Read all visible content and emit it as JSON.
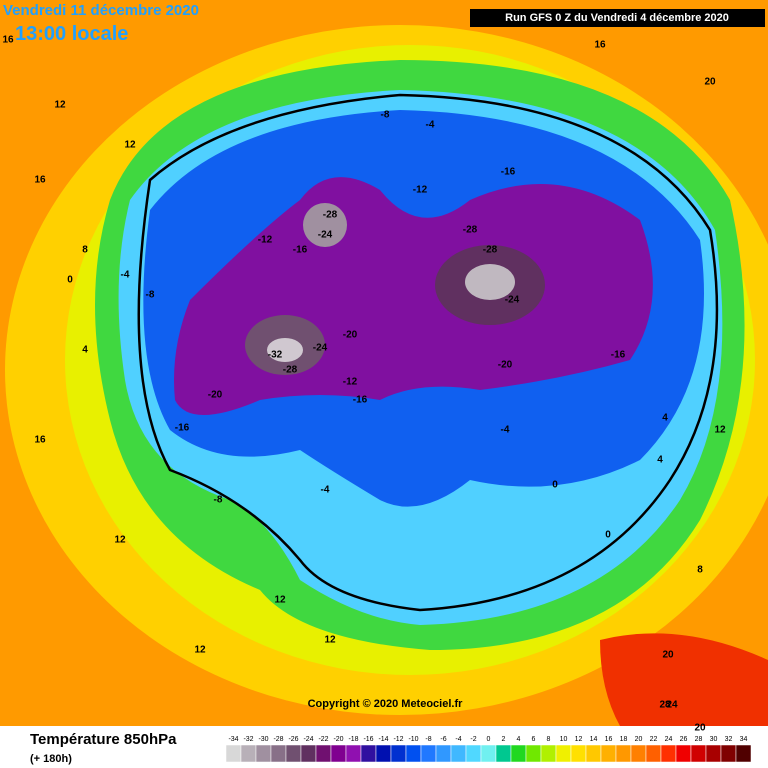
{
  "header": {
    "date": "Vendredi 11 décembre 2020",
    "time": "13:00 locale",
    "run": "Run GFS 0 Z du Vendredi 4 décembre 2020"
  },
  "copyright": "Copyright © 2020 Meteociel.fr",
  "footer": {
    "title": "Température 850hPa",
    "lead": "(+ 180h)"
  },
  "colorbar": {
    "ticks": [
      -34,
      -32,
      -30,
      -28,
      -26,
      -24,
      -22,
      -20,
      -18,
      -16,
      -14,
      -12,
      -10,
      -8,
      -6,
      -4,
      -2,
      0,
      2,
      4,
      6,
      8,
      10,
      12,
      14,
      16,
      18,
      20,
      22,
      24,
      26,
      28,
      30,
      32,
      34
    ],
    "colors": [
      "#d8d8d8",
      "#b8b0b8",
      "#a090a0",
      "#887088",
      "#705070",
      "#603060",
      "#701070",
      "#800090",
      "#9010b0",
      "#3010a0",
      "#0010b0",
      "#0030d0",
      "#0050f0",
      "#2078ff",
      "#3098ff",
      "#40b8ff",
      "#50d8ff",
      "#70f0f0",
      "#00c890",
      "#20d820",
      "#70e800",
      "#b0f000",
      "#f0f000",
      "#ffe000",
      "#ffc800",
      "#ffb000",
      "#ff9800",
      "#ff8000",
      "#ff6000",
      "#ff3000",
      "#f00000",
      "#d00000",
      "#a80000",
      "#800000",
      "#500000"
    ]
  },
  "contour_labels": [
    "16",
    "12",
    "12",
    "16",
    "12",
    "8",
    "4",
    "0",
    "-4",
    "-8",
    "-12",
    "-16",
    "-28",
    "-24",
    "-20",
    "-28",
    "-32",
    "-28",
    "-24",
    "-20",
    "-16",
    "-12",
    "-16",
    "-8",
    "-4",
    "0",
    "4",
    "8",
    "12",
    "16",
    "20",
    "20",
    "-8",
    "-4",
    "-12",
    "-16",
    "-28",
    "-24",
    "-20",
    "-16",
    "-4",
    "0",
    "4",
    "12",
    "20",
    "28",
    "24",
    "12",
    "12",
    "16"
  ]
}
